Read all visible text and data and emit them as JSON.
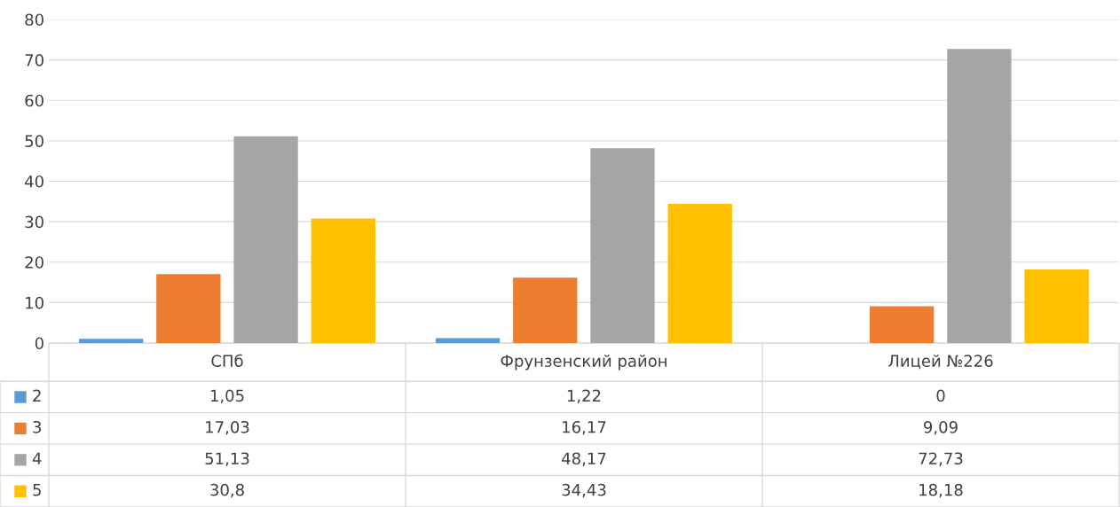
{
  "chart_data": {
    "type": "bar",
    "categories": [
      "СПб",
      "Фрунзенский район",
      "Лицей №226"
    ],
    "series": [
      {
        "name": "2",
        "color": "#5b9bd5",
        "values": [
          1.05,
          1.22,
          0
        ],
        "value_labels": [
          "1,05",
          "1,22",
          "0"
        ]
      },
      {
        "name": "3",
        "color": "#ed7d31",
        "values": [
          17.03,
          16.17,
          9.09
        ],
        "value_labels": [
          "17,03",
          "16,17",
          "9,09"
        ]
      },
      {
        "name": "4",
        "color": "#a5a5a5",
        "values": [
          51.13,
          48.17,
          72.73
        ],
        "value_labels": [
          "51,13",
          "48,17",
          "72,73"
        ]
      },
      {
        "name": "5",
        "color": "#ffc000",
        "values": [
          30.8,
          34.43,
          18.18
        ],
        "value_labels": [
          "30,8",
          "34,43",
          "18,18"
        ]
      }
    ],
    "ylim": [
      0,
      80
    ],
    "yticks": [
      0,
      10,
      20,
      30,
      40,
      50,
      60,
      70,
      80
    ],
    "grid": "y",
    "legend": "bottom"
  }
}
